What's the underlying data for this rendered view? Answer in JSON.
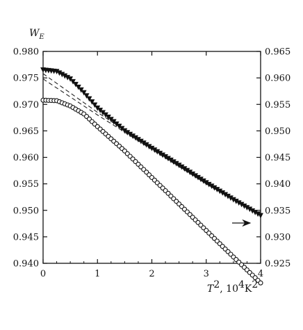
{
  "chart_data": {
    "type": "line",
    "ylabel_left": "W",
    "ylabel_left_sub": "E",
    "xlabel_var": "T",
    "xlabel_sup": "2",
    "xlabel_unit_prefix": ", 10",
    "xlabel_unit_sup": "4",
    "xlabel_unit_k": "K",
    "xlabel_unit_k_sup": "2",
    "xlim": [
      0,
      4
    ],
    "ylim_left": [
      0.94,
      0.98
    ],
    "ylim_right": [
      0.925,
      0.965
    ],
    "x_ticks": [
      "0",
      "1",
      "2",
      "3",
      "4"
    ],
    "y_left_ticks": [
      "0.940",
      "0.945",
      "0.950",
      "0.955",
      "0.960",
      "0.965",
      "0.970",
      "0.975",
      "0.980"
    ],
    "y_right_ticks": [
      "0.925",
      "0.930",
      "0.935",
      "0.940",
      "0.945",
      "0.950",
      "0.955",
      "0.960",
      "0.965"
    ],
    "annotation": "arrow pointing right indicates lower curve uses right axis",
    "series": [
      {
        "marker": "filled-triangle-down",
        "axis": "left",
        "x": [
          0,
          0.25,
          0.5,
          0.75,
          1.0,
          1.5,
          2.0,
          2.5,
          3.0,
          3.5,
          4.0
        ],
        "y": [
          0.9765,
          0.9762,
          0.9748,
          0.9722,
          0.9693,
          0.965,
          0.9617,
          0.9585,
          0.9552,
          0.952,
          0.949
        ]
      },
      {
        "marker": "open-circle",
        "axis": "right",
        "x": [
          0,
          0.25,
          0.5,
          0.75,
          1.0,
          1.5,
          2.0,
          2.5,
          3.0,
          3.5,
          4.0
        ],
        "y": [
          0.9558,
          0.9557,
          0.9547,
          0.9532,
          0.9508,
          0.9462,
          0.9412,
          0.9362,
          0.9312,
          0.9262,
          0.9213
        ]
      },
      {
        "style": "dashed",
        "axis": "left",
        "x": [
          0,
          1.0,
          2.0,
          3.0,
          4.0
        ],
        "y": [
          0.9758,
          0.9685,
          0.9617,
          0.955,
          0.949
        ]
      },
      {
        "style": "dashed",
        "axis": "left",
        "x": [
          0,
          1.0,
          2.0,
          3.0,
          4.0
        ],
        "y": [
          0.9748,
          0.968,
          0.9615,
          0.955,
          0.949
        ]
      }
    ]
  }
}
